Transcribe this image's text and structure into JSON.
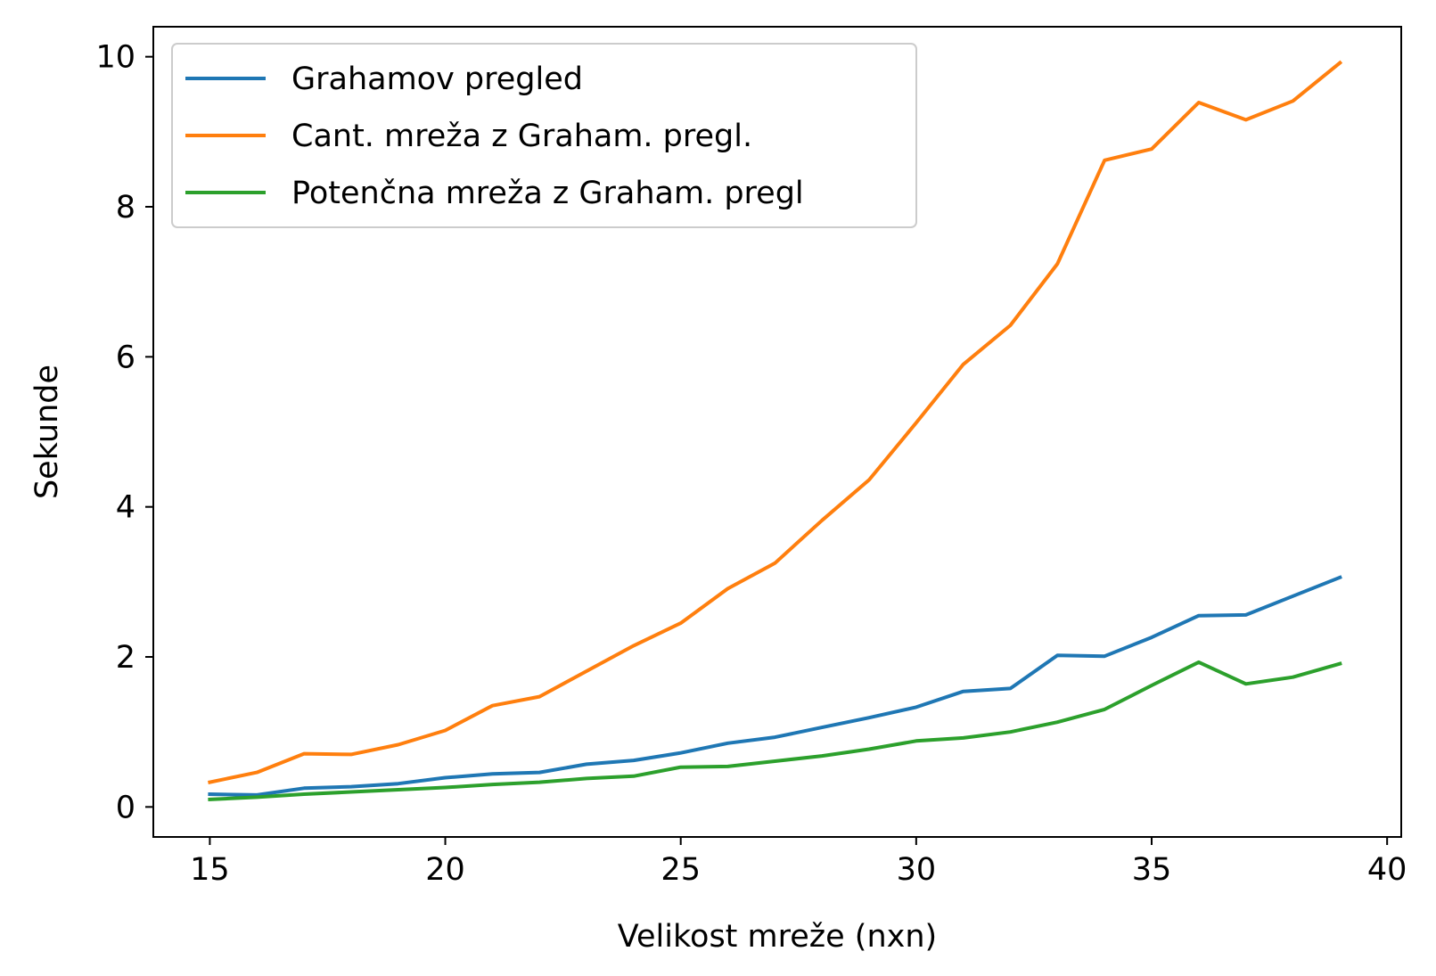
{
  "chart_data": {
    "type": "line",
    "title": "",
    "xlabel": "Velikost mreže (nxn)",
    "ylabel": "Sekunde",
    "xlim": [
      13.8,
      40.3
    ],
    "ylim": [
      -0.4,
      10.4
    ],
    "xticks": [
      15,
      20,
      25,
      30,
      35,
      40
    ],
    "yticks": [
      0,
      2,
      4,
      6,
      8,
      10
    ],
    "xtick_labels": [
      "15",
      "20",
      "25",
      "30",
      "35",
      "40"
    ],
    "ytick_labels": [
      "0",
      "2",
      "4",
      "6",
      "8",
      "10"
    ],
    "grid": false,
    "legend_position": "top-left",
    "x": [
      15,
      16,
      17,
      18,
      19,
      20,
      21,
      22,
      23,
      24,
      25,
      26,
      27,
      28,
      29,
      30,
      31,
      32,
      33,
      34,
      35,
      36,
      37,
      38,
      39
    ],
    "series": [
      {
        "name": "Grahamov pregled",
        "color": "#1f77b4",
        "values": [
          0.17,
          0.16,
          0.25,
          0.27,
          0.31,
          0.39,
          0.44,
          0.46,
          0.57,
          0.62,
          0.72,
          0.85,
          0.93,
          1.06,
          1.19,
          1.33,
          1.54,
          1.58,
          2.02,
          2.01,
          2.26,
          2.55,
          2.56,
          2.81,
          3.06
        ]
      },
      {
        "name": "Cant. mreža z Graham. pregl.",
        "color": "#ff7f0e",
        "values": [
          0.33,
          0.46,
          0.71,
          0.7,
          0.83,
          1.02,
          1.35,
          1.47,
          1.81,
          2.15,
          2.45,
          2.91,
          3.25,
          3.82,
          4.36,
          5.12,
          5.9,
          6.42,
          7.24,
          8.62,
          8.77,
          9.39,
          9.16,
          9.41,
          9.92
        ]
      },
      {
        "name": "Potenčna mreža z Graham. pregl",
        "color": "#2ca02c",
        "values": [
          0.1,
          0.13,
          0.17,
          0.2,
          0.23,
          0.26,
          0.3,
          0.33,
          0.38,
          0.41,
          0.53,
          0.54,
          0.61,
          0.68,
          0.77,
          0.88,
          0.92,
          1.0,
          1.13,
          1.3,
          1.62,
          1.93,
          1.64,
          1.73,
          1.91
        ]
      }
    ]
  }
}
